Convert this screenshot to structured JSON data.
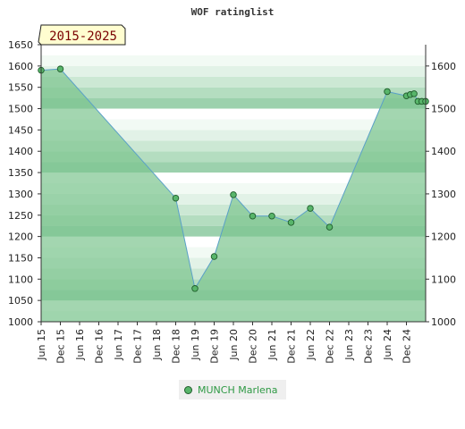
{
  "chart_data": {
    "type": "line",
    "title": "WOF ratinglist",
    "period_label": "2015-2025",
    "ylim": [
      1000,
      1650
    ],
    "y_ticks_left": [
      1000,
      1050,
      1100,
      1150,
      1200,
      1250,
      1300,
      1350,
      1400,
      1450,
      1500,
      1550,
      1600,
      1650
    ],
    "y_ticks_right": [
      1000,
      1100,
      1200,
      1300,
      1400,
      1500,
      1600
    ],
    "x_ticks": [
      "Jun 15",
      "Dec 15",
      "Jun 16",
      "Dec 16",
      "Jun 17",
      "Dec 17",
      "Jun 18",
      "Dec 18",
      "Jun 19",
      "Dec 19",
      "Jun 20",
      "Dec 20",
      "Jun 21",
      "Dec 21",
      "Jun 22",
      "Dec 22",
      "Jun 23",
      "Dec 23",
      "Jun 24",
      "Dec 24"
    ],
    "series": [
      {
        "name": "MUNCH Marlena",
        "points": [
          {
            "x": 0.0,
            "y": 1590
          },
          {
            "x": 1.0,
            "y": 1593
          },
          {
            "x": 7.0,
            "y": 1290
          },
          {
            "x": 8.0,
            "y": 1078
          },
          {
            "x": 9.0,
            "y": 1153
          },
          {
            "x": 10.0,
            "y": 1298
          },
          {
            "x": 11.0,
            "y": 1248
          },
          {
            "x": 12.0,
            "y": 1248
          },
          {
            "x": 13.0,
            "y": 1233
          },
          {
            "x": 14.0,
            "y": 1266
          },
          {
            "x": 15.0,
            "y": 1222
          },
          {
            "x": 18.0,
            "y": 1540
          },
          {
            "x": 19.0,
            "y": 1530
          },
          {
            "x": 19.2,
            "y": 1533
          },
          {
            "x": 19.4,
            "y": 1535
          },
          {
            "x": 19.6,
            "y": 1517
          },
          {
            "x": 19.8,
            "y": 1517
          },
          {
            "x": 20.0,
            "y": 1517
          }
        ]
      }
    ],
    "legend_position": "bottom-center",
    "colors": {
      "line": "#5aa0c8",
      "area": "#7cc48f",
      "marker_fill": "#58b56a",
      "marker_stroke": "#1f5c2b",
      "range_box_fill": "#fffdd0",
      "range_box_text": "#7a0000"
    }
  }
}
